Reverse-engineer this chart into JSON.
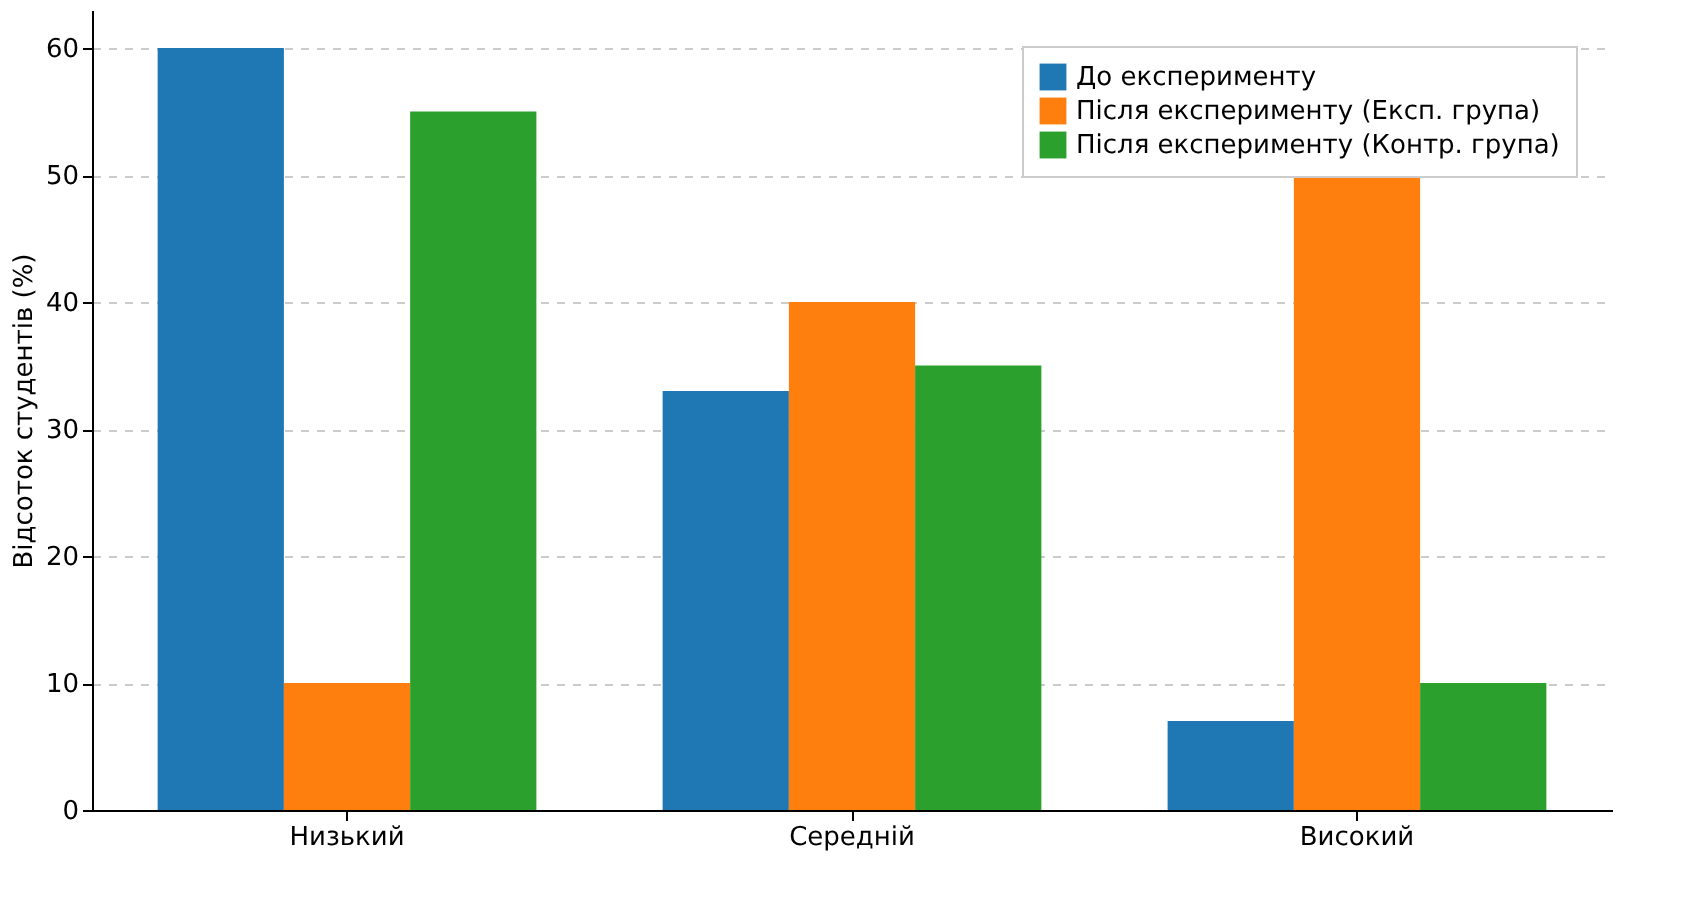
{
  "chart_data": {
    "type": "bar",
    "ylabel": "Відсоток студентів (%)",
    "categories": [
      "Низький",
      "Середній",
      "Високий"
    ],
    "series": [
      {
        "name": "До експерименту",
        "color": "#1f77b4",
        "values": [
          60,
          33,
          7
        ]
      },
      {
        "name": "Після експерименту (Експ. група)",
        "color": "#ff7f0e",
        "values": [
          10,
          40,
          50
        ]
      },
      {
        "name": "Після експерименту (Контр. група)",
        "color": "#2ca02c",
        "values": [
          55,
          35,
          10
        ]
      }
    ],
    "ylim": [
      0,
      63
    ],
    "yticks": [
      0,
      10,
      20,
      30,
      40,
      50,
      60
    ],
    "grid": "y",
    "legend": "top right"
  }
}
